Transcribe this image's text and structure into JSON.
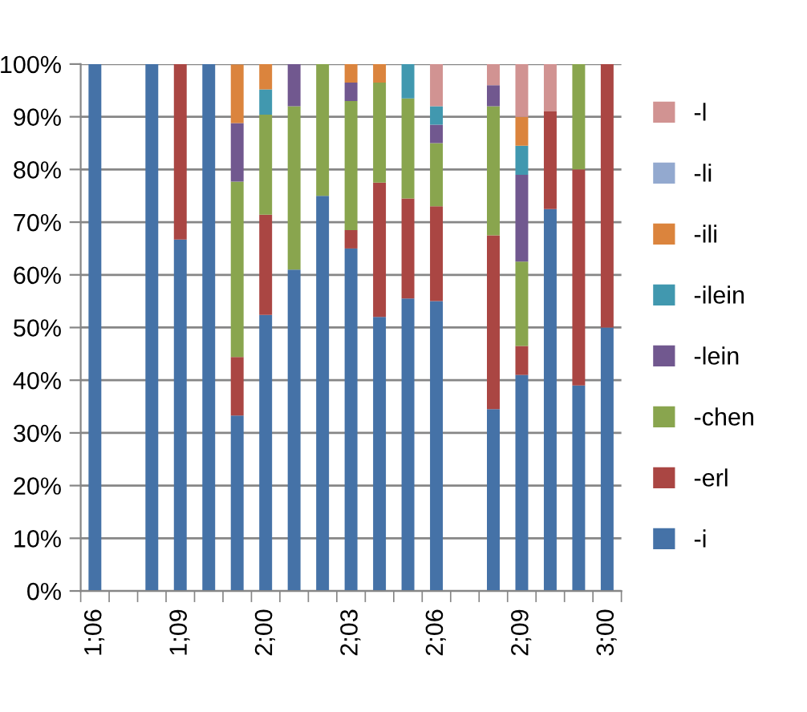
{
  "chart_data": {
    "type": "bar",
    "stacked": true,
    "grid": "y",
    "legend": "right",
    "categories": [
      "1;06",
      null,
      null,
      "1;09",
      null,
      null,
      "2;00",
      null,
      null,
      "2;03",
      null,
      null,
      "2;06",
      null,
      null,
      "2;09",
      null,
      null,
      "3;00"
    ],
    "ylim": [
      0,
      100
    ],
    "yticks": [
      {
        "value": 0,
        "label": "0%"
      },
      {
        "value": 10,
        "label": "10%"
      },
      {
        "value": 20,
        "label": "20%"
      },
      {
        "value": 30,
        "label": "30%"
      },
      {
        "value": 40,
        "label": "40%"
      },
      {
        "value": 50,
        "label": "50%"
      },
      {
        "value": 60,
        "label": "60%"
      },
      {
        "value": 70,
        "label": "70%"
      },
      {
        "value": 80,
        "label": "80%"
      },
      {
        "value": 90,
        "label": "90%"
      },
      {
        "value": 100,
        "label": "100%"
      }
    ],
    "series": [
      {
        "name": "-i",
        "color": "#4572a7",
        "values": [
          100,
          null,
          100,
          66.7,
          100,
          33.3,
          52.4,
          61,
          75,
          65,
          52,
          55.5,
          55,
          null,
          34.5,
          41,
          72.5,
          39,
          50
        ]
      },
      {
        "name": "-erl",
        "color": "#aa4643",
        "values": [
          0,
          null,
          0,
          33.3,
          0,
          11.1,
          19,
          0,
          0,
          3.5,
          25.5,
          19,
          18,
          null,
          33,
          5.5,
          18.5,
          41,
          50
        ]
      },
      {
        "name": "-chen",
        "color": "#89a54e",
        "values": [
          0,
          null,
          0,
          0,
          0,
          33.3,
          19,
          31,
          25,
          24.5,
          19,
          19,
          12,
          null,
          24.5,
          16,
          0,
          20,
          0
        ]
      },
      {
        "name": "-lein",
        "color": "#71588f",
        "values": [
          0,
          null,
          0,
          0,
          0,
          11.1,
          0,
          8,
          0,
          3.5,
          0,
          0,
          3.5,
          null,
          4,
          16.5,
          0,
          0,
          0
        ]
      },
      {
        "name": "-ilein",
        "color": "#4198af",
        "values": [
          0,
          null,
          0,
          0,
          0,
          0,
          4.8,
          0,
          0,
          0,
          0,
          6.5,
          3.5,
          null,
          0,
          5.5,
          0,
          0,
          0
        ]
      },
      {
        "name": "-ili",
        "color": "#db843d",
        "values": [
          0,
          null,
          0,
          0,
          0,
          11.1,
          4.8,
          0,
          0,
          3.5,
          3.5,
          0,
          0,
          null,
          0,
          5.5,
          0,
          0,
          0
        ]
      },
      {
        "name": "-li",
        "color": "#93a9cf",
        "values": [
          0,
          null,
          0,
          0,
          0,
          0,
          0,
          0,
          0,
          0,
          0,
          0,
          0,
          null,
          0,
          0,
          0,
          0,
          0
        ]
      },
      {
        "name": "-l",
        "color": "#d19392",
        "values": [
          0,
          null,
          0,
          0,
          0,
          0,
          0,
          0,
          0,
          0,
          0,
          0,
          8,
          null,
          4,
          10,
          9,
          0,
          0
        ]
      }
    ]
  }
}
